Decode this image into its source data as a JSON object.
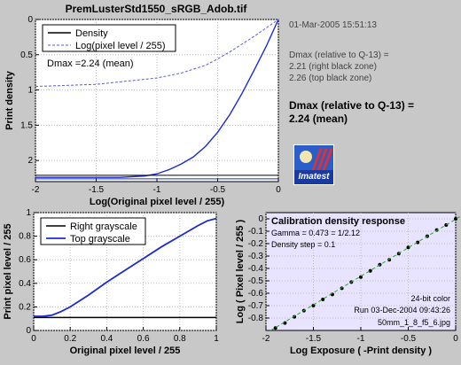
{
  "header": {
    "title": "PremLusterStd1550_sRGB_Adob.tif",
    "date": "01-Mar-2005 15:51:13"
  },
  "info": {
    "dmax_line1": "Dmax (relative to Q-13) =",
    "dmax_line2": "2.21 (right black zone)",
    "dmax_line3": "2.26 (top black zone)",
    "result_line1": "Dmax (relative to Q-13) =",
    "result_line2": "2.24 (mean)"
  },
  "logo": {
    "text": "Imatest",
    "icon": "imatest-logo-icon"
  },
  "colors": {
    "background": "#c8c8c8",
    "plot_bg": "#ffffff",
    "calib_bg": "#e8e4ff",
    "blue": "#1a2bd0",
    "dashed": "#5a5ad8",
    "black": "#000000",
    "green": "#22aa22"
  },
  "chart_data": [
    {
      "type": "line",
      "title": "",
      "xlabel": "Log(Original pixel level / 255)",
      "ylabel": "Print density",
      "xlim": [
        -2,
        0
      ],
      "ylim": [
        2.3,
        0
      ],
      "xticks": [
        "-2",
        "-1.5",
        "-1",
        "-0.5",
        "0"
      ],
      "yticks": [
        "0",
        "0.5",
        "1",
        "1.5",
        "2"
      ],
      "legend": [
        "Density",
        "Log(pixel level / 255)"
      ],
      "legend_position": "top-left",
      "annotation": "Dmax =2.24 (mean)",
      "grid": true,
      "series": [
        {
          "name": "Density",
          "style": "blue-solid",
          "x": [
            -2.0,
            -1.6,
            -1.3,
            -1.1,
            -1.0,
            -0.9,
            -0.8,
            -0.7,
            -0.6,
            -0.5,
            -0.4,
            -0.3,
            -0.2,
            -0.1,
            0.0
          ],
          "y": [
            2.24,
            2.24,
            2.24,
            2.22,
            2.19,
            2.13,
            2.05,
            1.95,
            1.8,
            1.6,
            1.35,
            1.05,
            0.72,
            0.38,
            0.0
          ]
        },
        {
          "name": "Log(pixel level / 255)",
          "style": "dashed",
          "x": [
            -2.0,
            -1.5,
            -1.0,
            -0.8,
            -0.6,
            -0.5,
            -0.4,
            -0.3,
            -0.2,
            -0.1,
            0.0
          ],
          "y": [
            0.95,
            0.92,
            0.83,
            0.76,
            0.65,
            0.56,
            0.46,
            0.35,
            0.24,
            0.12,
            0.0
          ]
        },
        {
          "name": "Dmax right",
          "style": "black-hline",
          "x": [
            -2,
            0
          ],
          "y": [
            2.21,
            2.21
          ]
        },
        {
          "name": "Dmax top",
          "style": "blue-hline",
          "x": [
            -2,
            0
          ],
          "y": [
            2.26,
            2.26
          ]
        }
      ]
    },
    {
      "type": "line",
      "title": "",
      "xlabel": "Original pixel level / 255",
      "ylabel": "Print pixel level / 255",
      "xlim": [
        0,
        1
      ],
      "ylim": [
        0,
        1
      ],
      "xticks": [
        "0",
        "0.2",
        "0.4",
        "0.6",
        "0.8",
        "1"
      ],
      "yticks": [
        "0",
        "0.2",
        "0.4",
        "0.6",
        "0.8",
        "1"
      ],
      "legend": [
        "Right grayscale",
        "Top grayscale"
      ],
      "legend_position": "top-left",
      "grid": true,
      "series": [
        {
          "name": "Right grayscale",
          "style": "black",
          "x": [
            0,
            1
          ],
          "y": [
            0.11,
            0.11
          ]
        },
        {
          "name": "Top grayscale",
          "style": "blue",
          "x": [
            0.0,
            0.05,
            0.1,
            0.15,
            0.2,
            0.3,
            0.4,
            0.5,
            0.6,
            0.7,
            0.8,
            0.9,
            0.95,
            1.0
          ],
          "y": [
            0.12,
            0.12,
            0.13,
            0.16,
            0.2,
            0.3,
            0.41,
            0.51,
            0.61,
            0.71,
            0.8,
            0.89,
            0.93,
            0.95
          ]
        }
      ]
    },
    {
      "type": "scatter",
      "title": "Calibration density response",
      "xlabel": "Log Exposure ( -Print density )",
      "ylabel": "Log ( Pixel level / 255 )",
      "xlim": [
        -2,
        0
      ],
      "ylim": [
        -0.9,
        0.05
      ],
      "xticks": [
        "-2",
        "-1.5",
        "-1",
        "-0.5",
        "0"
      ],
      "yticks": [
        "0",
        "-0.1",
        "-0.2",
        "-0.3",
        "-0.4",
        "-0.5",
        "-0.6",
        "-0.7",
        "-0.8"
      ],
      "annotations": [
        "Gamma = 0.473 = 1/2.12",
        "Density step = 0.1",
        "24-bit color",
        "Run 03-Dec-2004 09:43:26",
        "50mm_1_8_f5_6.jpg"
      ],
      "grid": true,
      "series": [
        {
          "name": "points",
          "style": "black-dots",
          "x": [
            -1.9,
            -1.8,
            -1.7,
            -1.6,
            -1.5,
            -1.4,
            -1.3,
            -1.2,
            -1.1,
            -1.0,
            -0.9,
            -0.8,
            -0.7,
            -0.6,
            -0.5,
            -0.4,
            -0.3,
            -0.2,
            -0.1,
            0.0
          ],
          "y": [
            -0.88,
            -0.84,
            -0.79,
            -0.74,
            -0.7,
            -0.65,
            -0.61,
            -0.56,
            -0.51,
            -0.47,
            -0.42,
            -0.37,
            -0.33,
            -0.28,
            -0.23,
            -0.19,
            -0.14,
            -0.09,
            -0.05,
            0.0
          ]
        },
        {
          "name": "fit",
          "style": "green-dashed",
          "x": [
            -1.95,
            0.05
          ],
          "y": [
            -0.9,
            0.02
          ]
        }
      ]
    }
  ]
}
